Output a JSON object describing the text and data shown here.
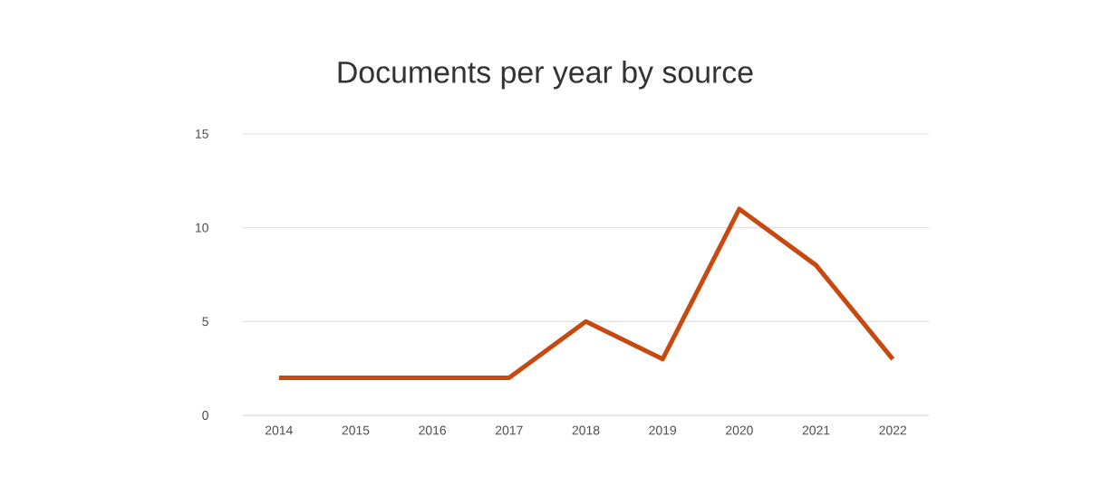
{
  "chart_data": {
    "type": "line",
    "title": "Documents per year by source",
    "categories": [
      "2014",
      "2015",
      "2016",
      "2017",
      "2018",
      "2019",
      "2020",
      "2021",
      "2022"
    ],
    "values": [
      2,
      2,
      2,
      2,
      5,
      3,
      11,
      8,
      3
    ],
    "color": "#c8490f",
    "ylim": [
      0,
      15
    ],
    "yticks": [
      0,
      5,
      10,
      15
    ],
    "grid": "y",
    "marker": "none",
    "line_style": "solid"
  }
}
